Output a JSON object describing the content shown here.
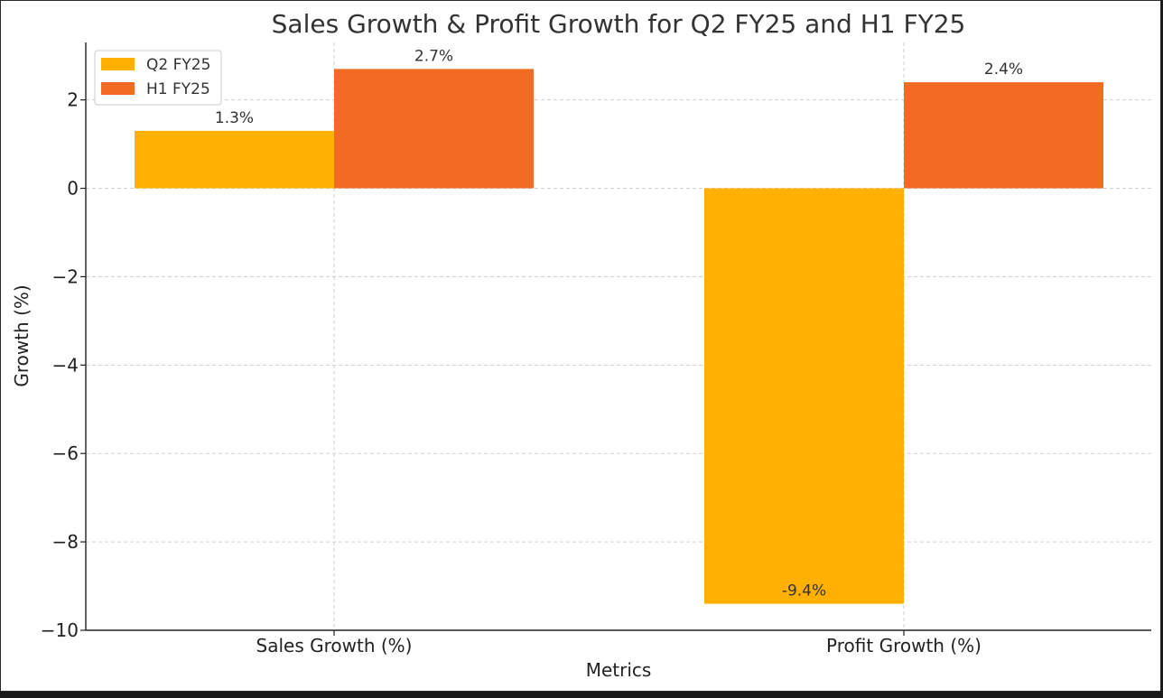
{
  "chart_data": {
    "type": "bar",
    "title": "Sales Growth & Profit Growth for Q2 FY25 and H1 FY25",
    "xlabel": "Metrics",
    "ylabel": "Growth (%)",
    "categories": [
      "Sales Growth (%)",
      "Profit Growth (%)"
    ],
    "series": [
      {
        "name": "Q2 FY25",
        "values": [
          1.3,
          -9.4
        ],
        "labels": [
          "1.3%",
          "-9.4%"
        ],
        "color": "#FFB000"
      },
      {
        "name": "H1 FY25",
        "values": [
          2.7,
          2.4
        ],
        "labels": [
          "2.7%",
          "2.4%"
        ],
        "color": "#F26B24"
      }
    ],
    "ylim": [
      -10,
      3.3
    ],
    "yticks": [
      {
        "value": 2,
        "label": "2"
      },
      {
        "value": 0,
        "label": "0"
      },
      {
        "value": -2,
        "label": "−2"
      },
      {
        "value": -4,
        "label": "−4"
      },
      {
        "value": -6,
        "label": "−6"
      },
      {
        "value": -8,
        "label": "−8"
      },
      {
        "value": -10,
        "label": "−10"
      }
    ],
    "grid": true,
    "legend": "top-left"
  }
}
